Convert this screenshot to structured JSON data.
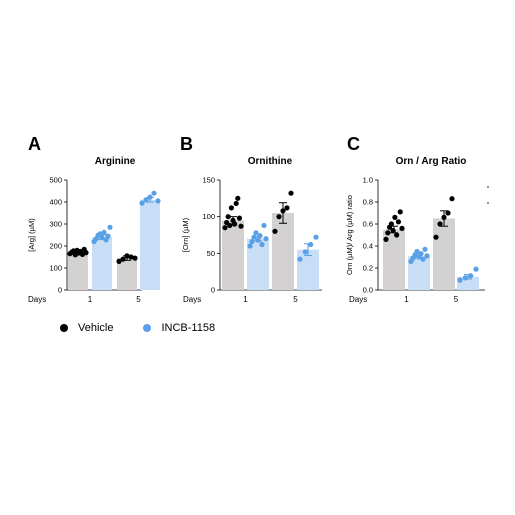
{
  "legend": {
    "vehicle": {
      "label": "Vehicle",
      "color": "#000000"
    },
    "treated": {
      "label": "INCB-1158",
      "color": "#5aa0e6"
    }
  },
  "bar_colors": {
    "vehicle": "#d3d1d1",
    "treated": "#c8def7"
  },
  "chart_data": [
    {
      "type": "bar",
      "panel_letter": "A",
      "title": "Arginine",
      "ylabel": "[Arg] (µM)",
      "xlabel": "Days",
      "categories": [
        "1",
        "5"
      ],
      "ylim": [
        0,
        500
      ],
      "yticks": [
        "0",
        "100",
        "200",
        "300",
        "400",
        "500"
      ],
      "series": [
        {
          "name": "Vehicle",
          "values": [
            170,
            145
          ],
          "sem": [
            6,
            10
          ],
          "points": [
            [
              165,
              172,
              178,
              160,
              180,
              168,
              175,
              162,
              185,
              170
            ],
            [
              130,
              140,
              155,
              150,
              145
            ]
          ]
        },
        {
          "name": "INCB-1158",
          "values": [
            240,
            410
          ],
          "sem": [
            10,
            10
          ],
          "points": [
            [
              220,
              232,
              248,
              255,
              238,
              262,
              228,
              245,
              285
            ],
            [
              395,
              410,
              422,
              440,
              405
            ]
          ]
        }
      ]
    },
    {
      "type": "bar",
      "panel_letter": "B",
      "title": "Ornithine",
      "ylabel": "[Orn] (µM)",
      "xlabel": "Days",
      "categories": [
        "1",
        "5"
      ],
      "ylim": [
        0,
        150
      ],
      "yticks": [
        "0",
        "50",
        "100",
        "150"
      ],
      "series": [
        {
          "name": "Vehicle",
          "values": [
            95,
            105
          ],
          "sem": [
            5,
            14
          ],
          "points": [
            [
              85,
              92,
              100,
              88,
              112,
              95,
              90,
              118,
              125,
              98,
              87
            ],
            [
              80,
              100,
              108,
              112,
              132
            ]
          ]
        },
        {
          "name": "INCB-1158",
          "values": [
            70,
            55
          ],
          "sem": [
            3,
            8
          ],
          "points": [
            [
              60,
              66,
              72,
              78,
              68,
              74,
              62,
              88,
              70
            ],
            [
              42,
              52,
              62,
              72
            ]
          ]
        }
      ]
    },
    {
      "type": "bar",
      "panel_letter": "C",
      "title": "Orn / Arg Ratio",
      "ylabel": "Orn (µM)/ Arg (µM) ratio",
      "xlabel": "Days",
      "categories": [
        "1",
        "5"
      ],
      "ylim": [
        0,
        1.0
      ],
      "yticks": [
        "0.0",
        "0.2",
        "0.4",
        "0.6",
        "0.8",
        "1.0"
      ],
      "series": [
        {
          "name": "Vehicle",
          "values": [
            0.55,
            0.65
          ],
          "sem": [
            0.03,
            0.07
          ],
          "points": [
            [
              0.46,
              0.52,
              0.57,
              0.6,
              0.54,
              0.66,
              0.5,
              0.62,
              0.71,
              0.56
            ],
            [
              0.48,
              0.6,
              0.66,
              0.7,
              0.83
            ]
          ]
        },
        {
          "name": "INCB-1158",
          "values": [
            0.31,
            0.12
          ],
          "sem": [
            0.02,
            0.02
          ],
          "points": [
            [
              0.26,
              0.29,
              0.32,
              0.35,
              0.3,
              0.33,
              0.28,
              0.37,
              0.31
            ],
            [
              0.09,
              0.11,
              0.13,
              0.19
            ]
          ]
        }
      ]
    }
  ]
}
